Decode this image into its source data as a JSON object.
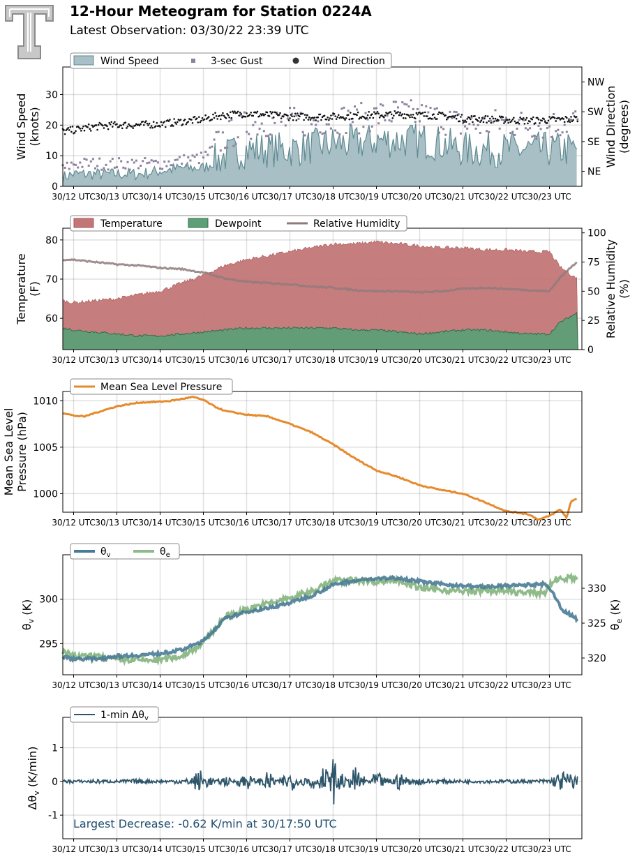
{
  "header": {
    "title": "12-Hour Meteogram for Station 0224A",
    "subtitle": "Latest Observation: 03/30/22 23:39 UTC"
  },
  "time_axis": {
    "tick_labels": [
      "30/12 UTC",
      "30/13 UTC",
      "30/14 UTC",
      "30/15 UTC",
      "30/16 UTC",
      "30/17 UTC",
      "30/18 UTC",
      "30/19 UTC",
      "30/20 UTC",
      "30/21 UTC",
      "30/22 UTC",
      "30/23 UTC"
    ]
  },
  "panels": {
    "wind": {
      "ylabel": "Wind Speed",
      "ylabel2": "(knots)",
      "y2label": "Wind Direction",
      "y2label2": "(degrees)",
      "legend": [
        "Wind Speed",
        "3-sec Gust",
        "Wind Direction"
      ]
    },
    "temp": {
      "ylabel": "Temperature",
      "ylabel2": "(F)",
      "y2label": "Relative Humidity",
      "y2label2": "(%)",
      "legend": [
        "Temperature",
        "Dewpoint",
        "Relative Humidity"
      ]
    },
    "pres": {
      "ylabel": "Mean Sea Level",
      "ylabel2": "Pressure (hPa)",
      "legend": [
        "Mean Sea Level Pressure"
      ]
    },
    "theta": {
      "legend": [
        "θv",
        "θe"
      ]
    },
    "dtheta": {
      "legend": [
        "1-min Δθv"
      ],
      "annotation": "Largest Decrease: -0.62 K/min at 30/17:50 UTC"
    }
  },
  "colors": {
    "wind_fill": "#a7bfc5",
    "wind_line": "#5f8a92",
    "gust": "#8e819f",
    "direction": "#111111",
    "temp": "#c27677",
    "dew": "#5e9f78",
    "rh": "#8f7a7b",
    "pressure": "#e68a2e",
    "theta_v": "#4a7b96",
    "theta_e": "#8fba8a",
    "dtheta": "#2e566b",
    "annotation": "#1f4e6e"
  },
  "chart_data": [
    {
      "type": "area",
      "name": "wind",
      "ylim": [
        0,
        39
      ],
      "yticks": [
        0,
        10,
        20,
        30
      ],
      "y2ticks": [
        "NE",
        "SE",
        "SW",
        "NW"
      ],
      "y2_values": [
        45,
        135,
        225,
        315
      ],
      "x_hours": [
        11.75,
        12,
        12.5,
        13,
        13.5,
        14,
        14.5,
        15,
        15.25,
        15.5,
        16,
        16.5,
        17,
        17.5,
        18,
        18.5,
        19,
        19.5,
        20,
        20.5,
        21,
        21.5,
        22,
        22.5,
        23,
        23.5,
        23.66
      ],
      "series": [
        {
          "name": "Wind Speed",
          "values": [
            3,
            4,
            4,
            4,
            4,
            5,
            6,
            6,
            8,
            10,
            12,
            12,
            12,
            13,
            14,
            14,
            15,
            15,
            15,
            14,
            12,
            12,
            12,
            12,
            12,
            12,
            13
          ]
        },
        {
          "name": "3-sec Gust",
          "values": [
            5,
            7,
            7,
            7,
            7,
            7,
            8,
            9,
            12,
            15,
            19,
            20,
            20,
            20,
            21,
            21,
            22,
            23,
            22,
            21,
            19,
            19,
            20,
            19,
            19,
            20,
            21
          ]
        },
        {
          "name": "Wind Direction",
          "values": [
            165,
            170,
            180,
            185,
            185,
            188,
            195,
            202,
            210,
            215,
            220,
            215,
            210,
            210,
            210,
            213,
            215,
            217,
            215,
            213,
            205,
            203,
            200,
            198,
            200,
            202,
            205
          ]
        }
      ]
    },
    {
      "type": "area",
      "name": "temperature",
      "ylim": [
        52,
        83
      ],
      "yticks": [
        60,
        70,
        80
      ],
      "y2ticks": [
        0,
        25,
        50,
        75,
        100
      ],
      "y2lim": [
        0,
        104
      ],
      "x_hours": [
        11.75,
        12,
        12.5,
        13,
        13.5,
        14,
        14.5,
        15,
        15.5,
        16,
        16.5,
        17,
        17.5,
        18,
        18.5,
        19,
        19.5,
        20,
        20.5,
        21,
        21.5,
        22,
        22.5,
        23,
        23.25,
        23.66
      ],
      "series": [
        {
          "name": "Temperature",
          "values": [
            64.5,
            64,
            64.5,
            65,
            66,
            67,
            69,
            71,
            73.5,
            75,
            76,
            77,
            78,
            79,
            79,
            79.5,
            79,
            78.5,
            78,
            78,
            77.5,
            77.5,
            77,
            77,
            73,
            70
          ]
        },
        {
          "name": "Dewpoint",
          "values": [
            57.5,
            57,
            56.5,
            56,
            55.5,
            55.5,
            56,
            56.5,
            57,
            57.5,
            57.5,
            57.5,
            57.5,
            57.5,
            57,
            57,
            56.5,
            56,
            56.5,
            57,
            57,
            56.5,
            56,
            56,
            59,
            61.5
          ]
        },
        {
          "name": "Relative Humidity",
          "values": [
            77,
            77,
            75,
            73,
            72,
            70,
            69,
            66,
            61,
            58,
            57,
            56,
            54,
            53,
            51,
            50,
            50,
            49,
            50,
            52,
            53,
            52,
            51,
            50,
            62,
            76
          ]
        }
      ]
    },
    {
      "type": "line",
      "name": "pressure",
      "ylim": [
        998.0,
        1011.0
      ],
      "yticks": [
        1000,
        1005,
        1010
      ],
      "x_hours": [
        11.75,
        12,
        12.25,
        12.5,
        13,
        13.5,
        14,
        14.25,
        14.5,
        14.75,
        15,
        15.25,
        15.5,
        16,
        16.5,
        17,
        17.5,
        18,
        18.5,
        19,
        19.5,
        20,
        20.5,
        21,
        21.5,
        22,
        22.5,
        22.75,
        23,
        23.25,
        23.4,
        23.5,
        23.66
      ],
      "series": [
        {
          "name": "Mean Sea Level Pressure",
          "values": [
            1008.7,
            1008.4,
            1008.3,
            1008.7,
            1009.4,
            1009.8,
            1009.9,
            1010.0,
            1010.2,
            1010.4,
            1010.1,
            1009.4,
            1008.9,
            1008.5,
            1008.3,
            1007.5,
            1006.6,
            1005.3,
            1003.8,
            1002.5,
            1001.8,
            1000.9,
            1000.4,
            1000.0,
            999.1,
            998.1,
            997.8,
            997.2,
            997.6,
            998.3,
            997.4,
            999.2,
            999.5
          ]
        }
      ]
    },
    {
      "type": "line",
      "name": "theta",
      "ylim": [
        291.5,
        305.0
      ],
      "yticks": [
        295,
        300
      ],
      "y2ticks": [
        320,
        325,
        330
      ],
      "y2lim": [
        317.6,
        334.8
      ],
      "x_hours": [
        11.75,
        12,
        12.5,
        13,
        13.5,
        14,
        14.5,
        15,
        15.5,
        16,
        16.5,
        17,
        17.5,
        18,
        18.5,
        19,
        19.5,
        20,
        20.5,
        21,
        21.5,
        22,
        22.5,
        22.9,
        23.1,
        23.3,
        23.66
      ],
      "series": [
        {
          "name": "θv",
          "values": [
            293.5,
            293.3,
            293.3,
            293.6,
            293.7,
            293.9,
            294.3,
            295.3,
            297.8,
            298.6,
            299.0,
            299.6,
            300.4,
            301.6,
            302.1,
            302.3,
            302.4,
            302.0,
            301.7,
            301.5,
            301.4,
            301.5,
            301.6,
            301.7,
            300.5,
            298.8,
            297.7
          ]
        },
        {
          "name": "θe",
          "values": [
            321.0,
            320.2,
            320.2,
            319.8,
            319.7,
            319.7,
            320.3,
            322.2,
            325.9,
            327.0,
            327.8,
            328.6,
            329.6,
            331.0,
            331.2,
            331.0,
            331.2,
            330.0,
            329.8,
            329.5,
            329.7,
            329.6,
            329.3,
            329.4,
            331.2,
            331.4,
            331.5
          ]
        }
      ]
    },
    {
      "type": "line",
      "name": "dtheta",
      "ylim": [
        -1.7,
        1.9
      ],
      "yticks": [
        -1,
        0,
        1
      ],
      "x_hours": [
        11.75,
        12,
        12.5,
        13,
        13.5,
        14,
        14.5,
        14.95,
        15,
        15.05,
        15.5,
        16,
        16.5,
        17,
        17.5,
        17.83,
        18,
        18.5,
        19,
        19.5,
        20,
        20.5,
        21,
        21.5,
        22,
        22.5,
        23,
        23.3,
        23.66
      ],
      "series": [
        {
          "name": "1-min Δθv",
          "values": [
            0,
            0.02,
            -0.03,
            0.01,
            0.04,
            -0.02,
            0.05,
            -0.35,
            0.5,
            -0.2,
            0.15,
            -0.25,
            0.3,
            -0.35,
            0.4,
            -0.62,
            0.75,
            -0.45,
            0.3,
            -0.25,
            0.1,
            -0.05,
            0.03,
            -0.02,
            0.02,
            0.01,
            -0.05,
            -0.3,
            -0.15
          ]
        }
      ]
    }
  ]
}
